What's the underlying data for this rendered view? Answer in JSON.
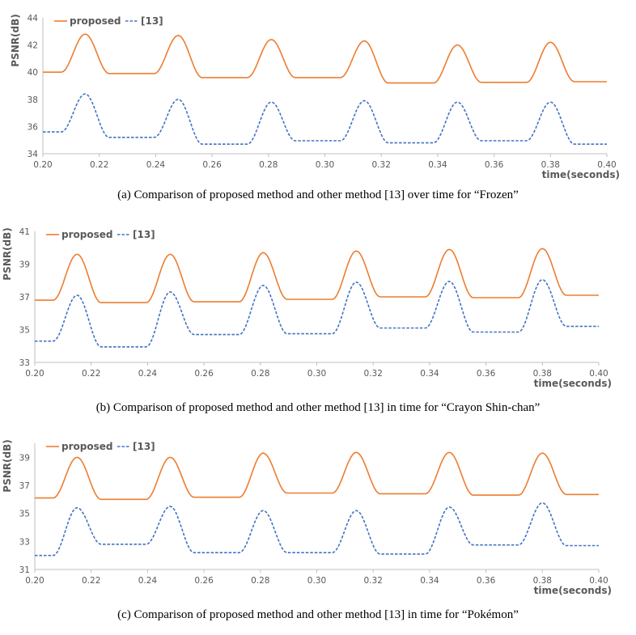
{
  "colors": {
    "proposed": "#ED7D31",
    "ref": "#4472C4",
    "axis": "#BFBFBF",
    "text": "#595959"
  },
  "chart_data": [
    {
      "type": "line",
      "caption": "(a) Comparison of proposed method and other method [13] over time for “Frozen”",
      "ylabel": "PSNR(dB)",
      "xlabel": "time(seconds)",
      "xlim": [
        0.2,
        0.4
      ],
      "ylim": [
        34,
        44
      ],
      "xticks": [
        "0.20",
        "0.22",
        "0.24",
        "0.26",
        "0.28",
        "0.30",
        "0.32",
        "0.34",
        "0.36",
        "0.38",
        "0.40"
      ],
      "yticks": [
        "34",
        "36",
        "38",
        "40",
        "42",
        "44"
      ],
      "legend": "top-left",
      "series": [
        {
          "name": "proposed",
          "style": "solid",
          "baselines": [
            40.0,
            39.9,
            39.6,
            39.6,
            39.2,
            39.25,
            39.3
          ],
          "peaks": [
            42.8,
            42.7,
            42.4,
            42.3,
            42.0,
            42.2
          ]
        },
        {
          "name": "[13]",
          "style": "dashed",
          "baselines": [
            35.6,
            35.2,
            34.7,
            34.95,
            34.8,
            34.95,
            34.7
          ],
          "peaks": [
            38.4,
            38.0,
            37.8,
            37.9,
            37.8,
            37.8
          ]
        }
      ]
    },
    {
      "type": "line",
      "caption": "(b) Comparison of proposed method and other method [13] in time for “Crayon Shin-chan”",
      "ylabel": "PSNR(dB)",
      "xlabel": "time(seconds)",
      "xlim": [
        0.2,
        0.4
      ],
      "ylim": [
        33,
        41
      ],
      "xticks": [
        "0.20",
        "0.22",
        "0.24",
        "0.26",
        "0.28",
        "0.30",
        "0.32",
        "0.34",
        "0.36",
        "0.38",
        "0.40"
      ],
      "yticks": [
        "33",
        "35",
        "37",
        "39",
        "41"
      ],
      "legend": "top-left",
      "series": [
        {
          "name": "proposed",
          "style": "solid",
          "baselines": [
            36.8,
            36.65,
            36.7,
            36.85,
            37.0,
            36.95,
            37.1
          ],
          "peaks": [
            39.6,
            39.6,
            39.7,
            39.8,
            39.9,
            39.95
          ]
        },
        {
          "name": "[13]",
          "style": "dashed",
          "baselines": [
            34.3,
            33.95,
            34.7,
            34.75,
            35.1,
            34.85,
            35.2
          ],
          "peaks": [
            37.1,
            37.3,
            37.7,
            37.9,
            37.95,
            38.05
          ]
        }
      ]
    },
    {
      "type": "line",
      "caption": "(c) Comparison of proposed method and other method [13] in time for “Pokémon”",
      "ylabel": "PSNR(dB)",
      "xlabel": "time(seconds)",
      "xlim": [
        0.2,
        0.4
      ],
      "ylim": [
        31,
        40
      ],
      "xticks": [
        "0.20",
        "0.22",
        "0.24",
        "0.26",
        "0.28",
        "0.30",
        "0.32",
        "0.34",
        "0.36",
        "0.38",
        "0.40"
      ],
      "yticks": [
        "31",
        "33",
        "35",
        "37",
        "39"
      ],
      "legend": "top-left",
      "series": [
        {
          "name": "proposed",
          "style": "solid",
          "baselines": [
            36.1,
            36.0,
            36.15,
            36.45,
            36.4,
            36.3,
            36.35
          ],
          "peaks": [
            39.0,
            39.0,
            39.3,
            39.35,
            39.35,
            39.3
          ]
        },
        {
          "name": "[13]",
          "style": "dashed",
          "baselines": [
            32.0,
            32.8,
            32.2,
            32.2,
            32.1,
            32.75,
            32.7
          ],
          "peaks": [
            35.4,
            35.5,
            35.2,
            35.2,
            35.45,
            35.75
          ]
        }
      ]
    }
  ]
}
